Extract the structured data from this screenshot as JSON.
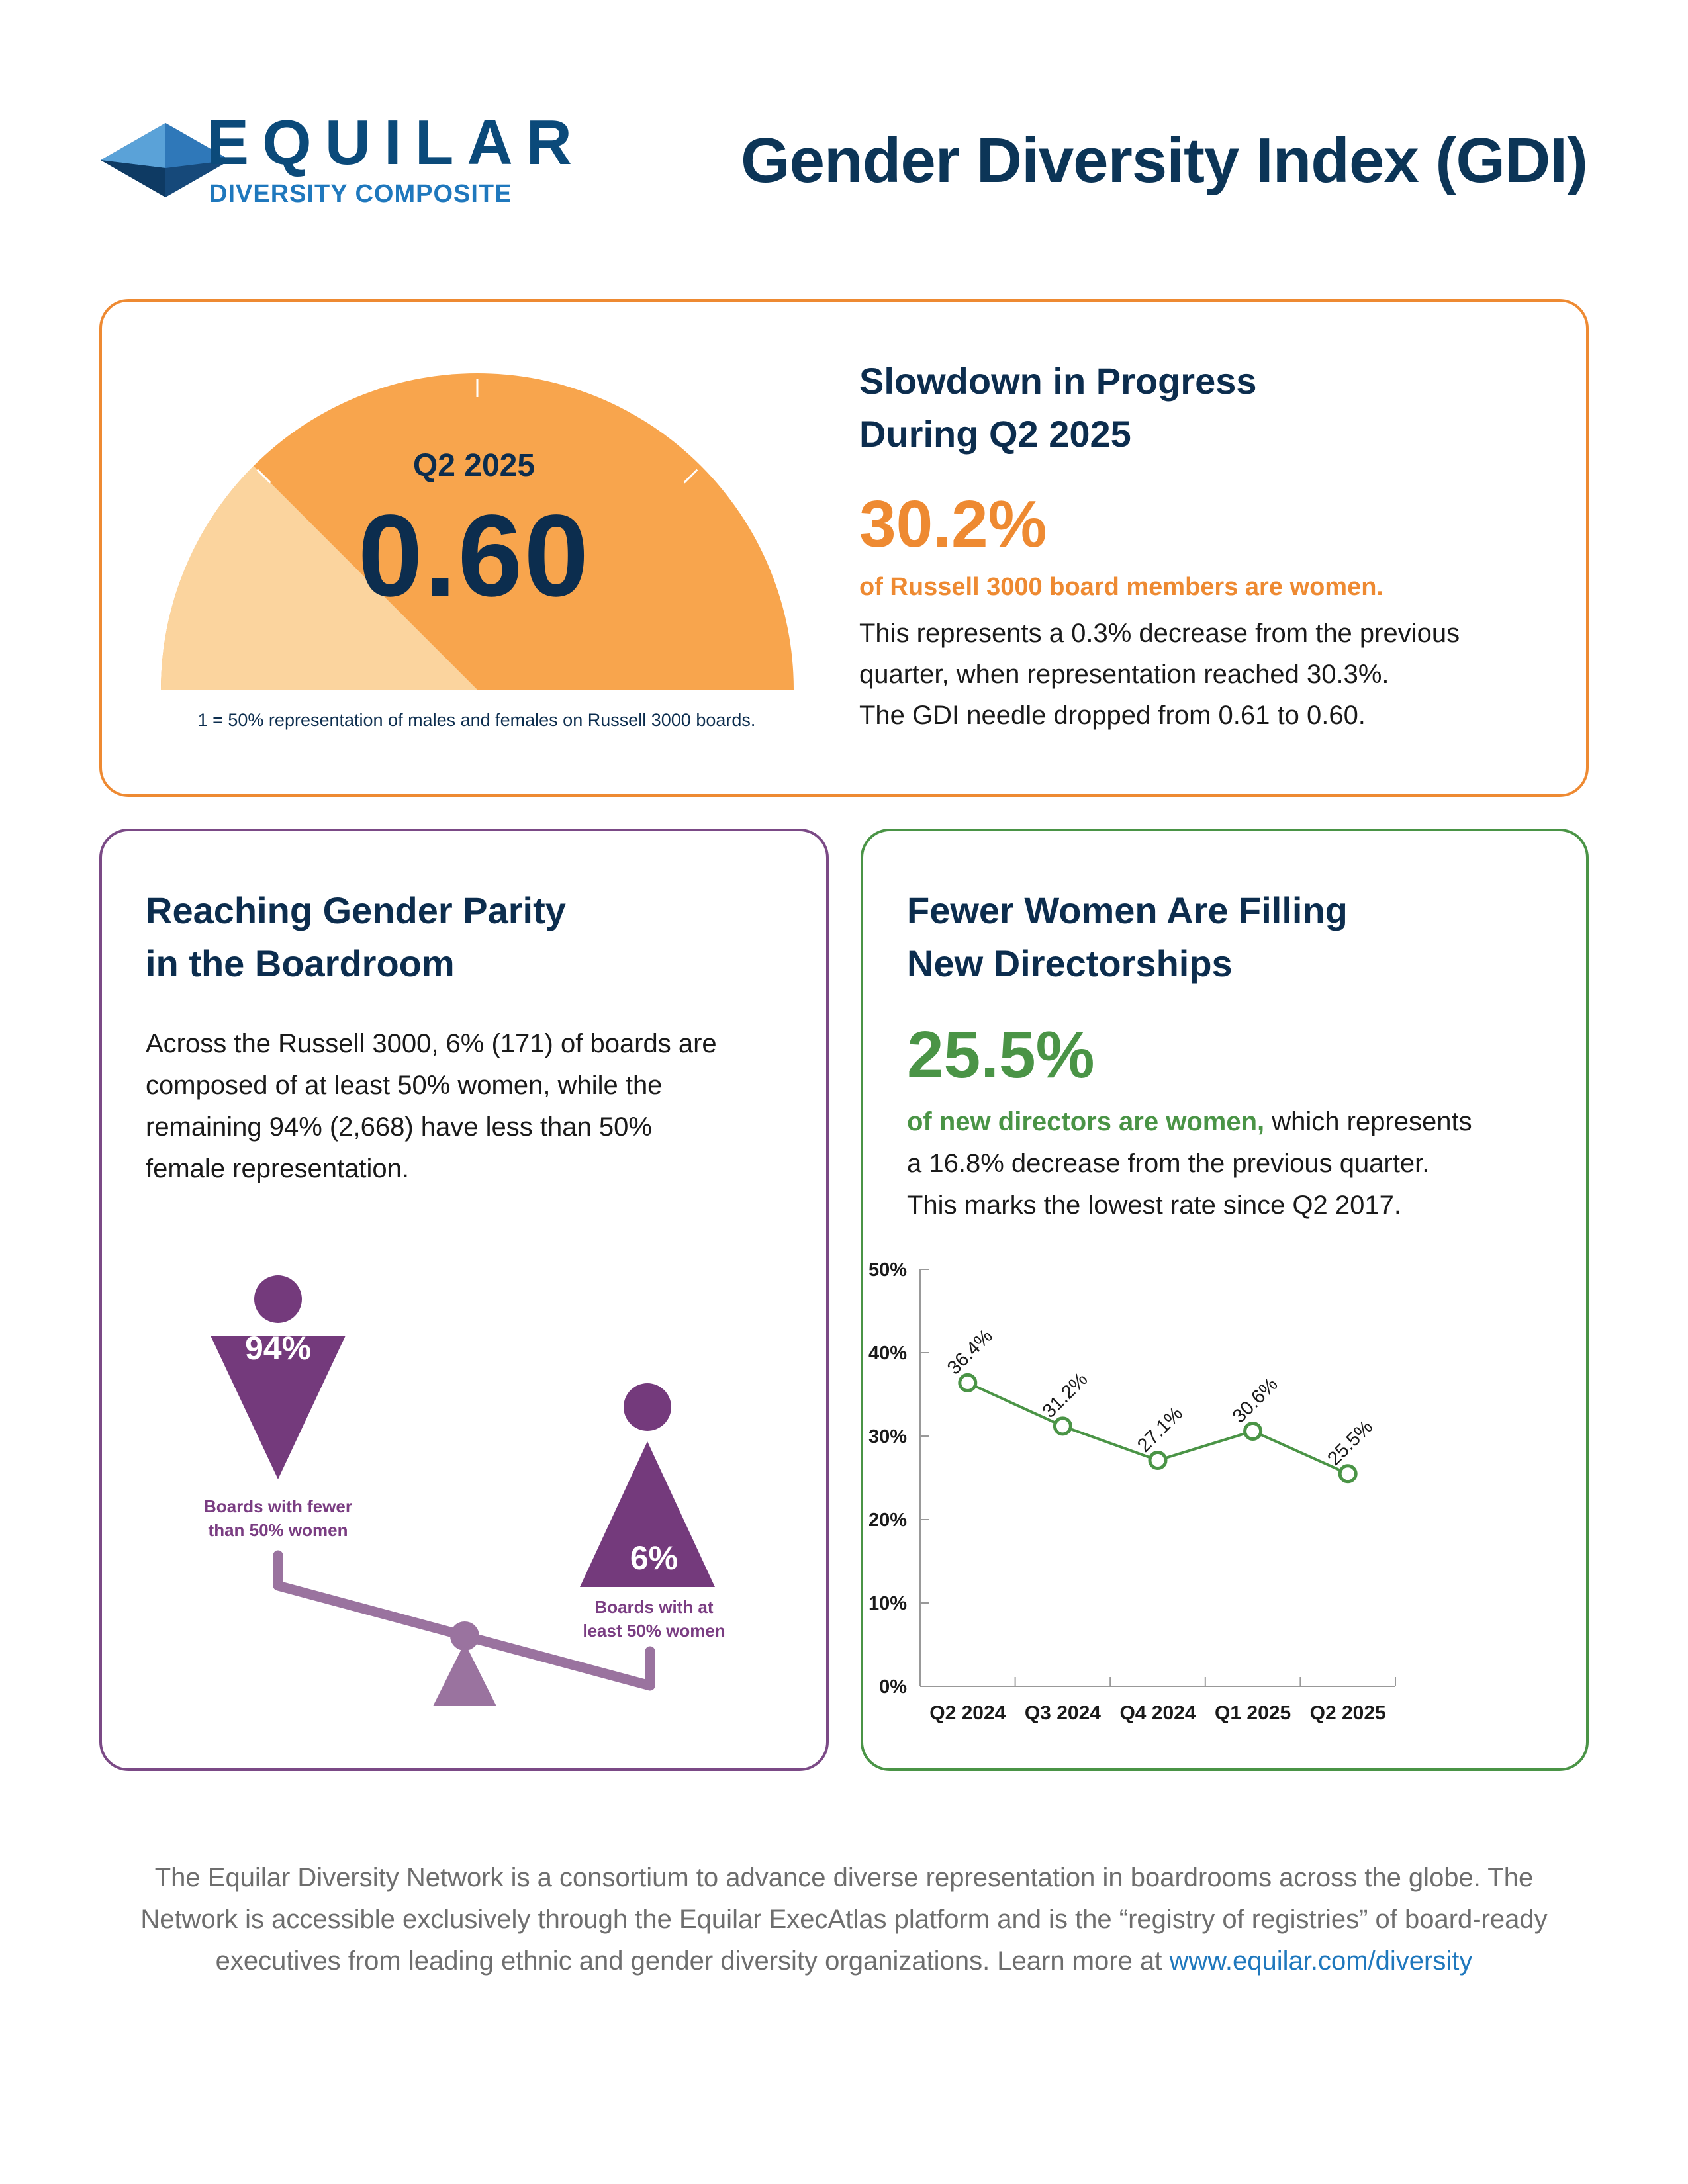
{
  "header": {
    "logo_word": "EQUILAR",
    "logo_sub": "DIVERSITY COMPOSITE",
    "title": "Gender Diversity Index (GDI)"
  },
  "gauge": {
    "period": "Q2 2025",
    "value_label": "0.60",
    "value": 0.6,
    "max": 1,
    "note": "1 = 50% representation of males and females on Russell 3000 boards.",
    "colors": {
      "filled": "#f8a54d",
      "empty": "#fbd49e"
    }
  },
  "slowdown": {
    "heading_line1": "Slowdown in Progress",
    "heading_line2": "During Q2 2025",
    "stat": "30.2%",
    "highlight": "of Russell 3000 board members are women.",
    "body_line1": "This represents a 0.3% decrease from the previous",
    "body_line2": "quarter, when representation reached 30.3%.",
    "body_line3": "The GDI needle dropped from 0.61 to 0.60."
  },
  "parity": {
    "heading_line1": "Reaching Gender Parity",
    "heading_line2": "in the Boardroom",
    "body_line1": "Across the Russell 3000, 6% (171) of boards are",
    "body_line2": "composed of at least 50% women, while the",
    "body_line3": "remaining 94% (2,668) have less than 50%",
    "body_line4": "female representation.",
    "fewer": {
      "pct": "94%",
      "label_line1": "Boards with fewer",
      "label_line2": "than 50% women"
    },
    "atleast": {
      "pct": "6%",
      "label_line1": "Boards with at",
      "label_line2": "least 50% women"
    },
    "colors": {
      "figure": "#743a7c",
      "scale": "#9a739f"
    }
  },
  "new_directors": {
    "heading_line1": "Fewer Women Are Filling",
    "heading_line2": "New Directorships",
    "stat": "25.5%",
    "highlight": "of new directors are women,",
    "body_rest": " which represents",
    "body_line2": "a 16.8% decrease from the previous quarter.",
    "body_line3": "This marks the lowest rate since Q2 2017."
  },
  "chart_data": {
    "type": "line",
    "categories": [
      "Q2 2024",
      "Q3 2024",
      "Q4 2024",
      "Q1 2025",
      "Q2 2025"
    ],
    "series": [
      {
        "values": [
          36.4,
          31.2,
          27.1,
          30.6,
          25.5
        ],
        "labels": [
          "36.4%",
          "31.2%",
          "27.1%",
          "30.6%",
          "25.5%"
        ]
      }
    ],
    "y_ticks": [
      "0%",
      "10%",
      "20%",
      "30%",
      "40%",
      "50%"
    ],
    "ylim": [
      0,
      50
    ],
    "grid": false,
    "color": "#4a9446"
  },
  "footer": {
    "line1": "The Equilar Diversity Network is a consortium to advance diverse representation in boardrooms across the globe. The",
    "line2": "Network is accessible exclusively through the Equilar ExecAtlas platform and is the “registry of registries” of board-ready",
    "line3": "executives from leading ethnic and gender diversity organizations. Learn more at ",
    "link": "www.equilar.com/diversity"
  }
}
